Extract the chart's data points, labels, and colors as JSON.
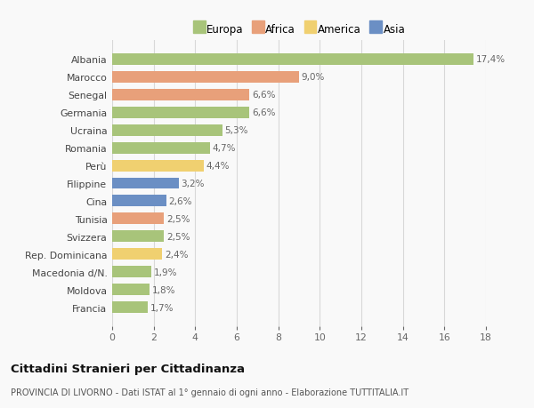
{
  "categories": [
    "Albania",
    "Marocco",
    "Senegal",
    "Germania",
    "Ucraina",
    "Romania",
    "Perù",
    "Filippine",
    "Cina",
    "Tunisia",
    "Svizzera",
    "Rep. Dominicana",
    "Macedonia d/N.",
    "Moldova",
    "Francia"
  ],
  "values": [
    17.4,
    9.0,
    6.6,
    6.6,
    5.3,
    4.7,
    4.4,
    3.2,
    2.6,
    2.5,
    2.5,
    2.4,
    1.9,
    1.8,
    1.7
  ],
  "labels": [
    "17,4%",
    "9,0%",
    "6,6%",
    "6,6%",
    "5,3%",
    "4,7%",
    "4,4%",
    "3,2%",
    "2,6%",
    "2,5%",
    "2,5%",
    "2,4%",
    "1,9%",
    "1,8%",
    "1,7%"
  ],
  "colors": [
    "#a8c47a",
    "#e8a07a",
    "#e8a07a",
    "#a8c47a",
    "#a8c47a",
    "#a8c47a",
    "#f0d070",
    "#6b8fc4",
    "#6b8fc4",
    "#e8a07a",
    "#a8c47a",
    "#f0d070",
    "#a8c47a",
    "#a8c47a",
    "#a8c47a"
  ],
  "legend": {
    "Europa": "#a8c47a",
    "Africa": "#e8a07a",
    "America": "#f0d070",
    "Asia": "#6b8fc4"
  },
  "title": "Cittadini Stranieri per Cittadinanza",
  "subtitle": "PROVINCIA DI LIVORNO - Dati ISTAT al 1° gennaio di ogni anno - Elaborazione TUTTITALIA.IT",
  "xlim": [
    0,
    18
  ],
  "xticks": [
    0,
    2,
    4,
    6,
    8,
    10,
    12,
    14,
    16,
    18
  ],
  "background_color": "#f9f9f9",
  "grid_color": "#d8d8d8",
  "bar_height": 0.65
}
